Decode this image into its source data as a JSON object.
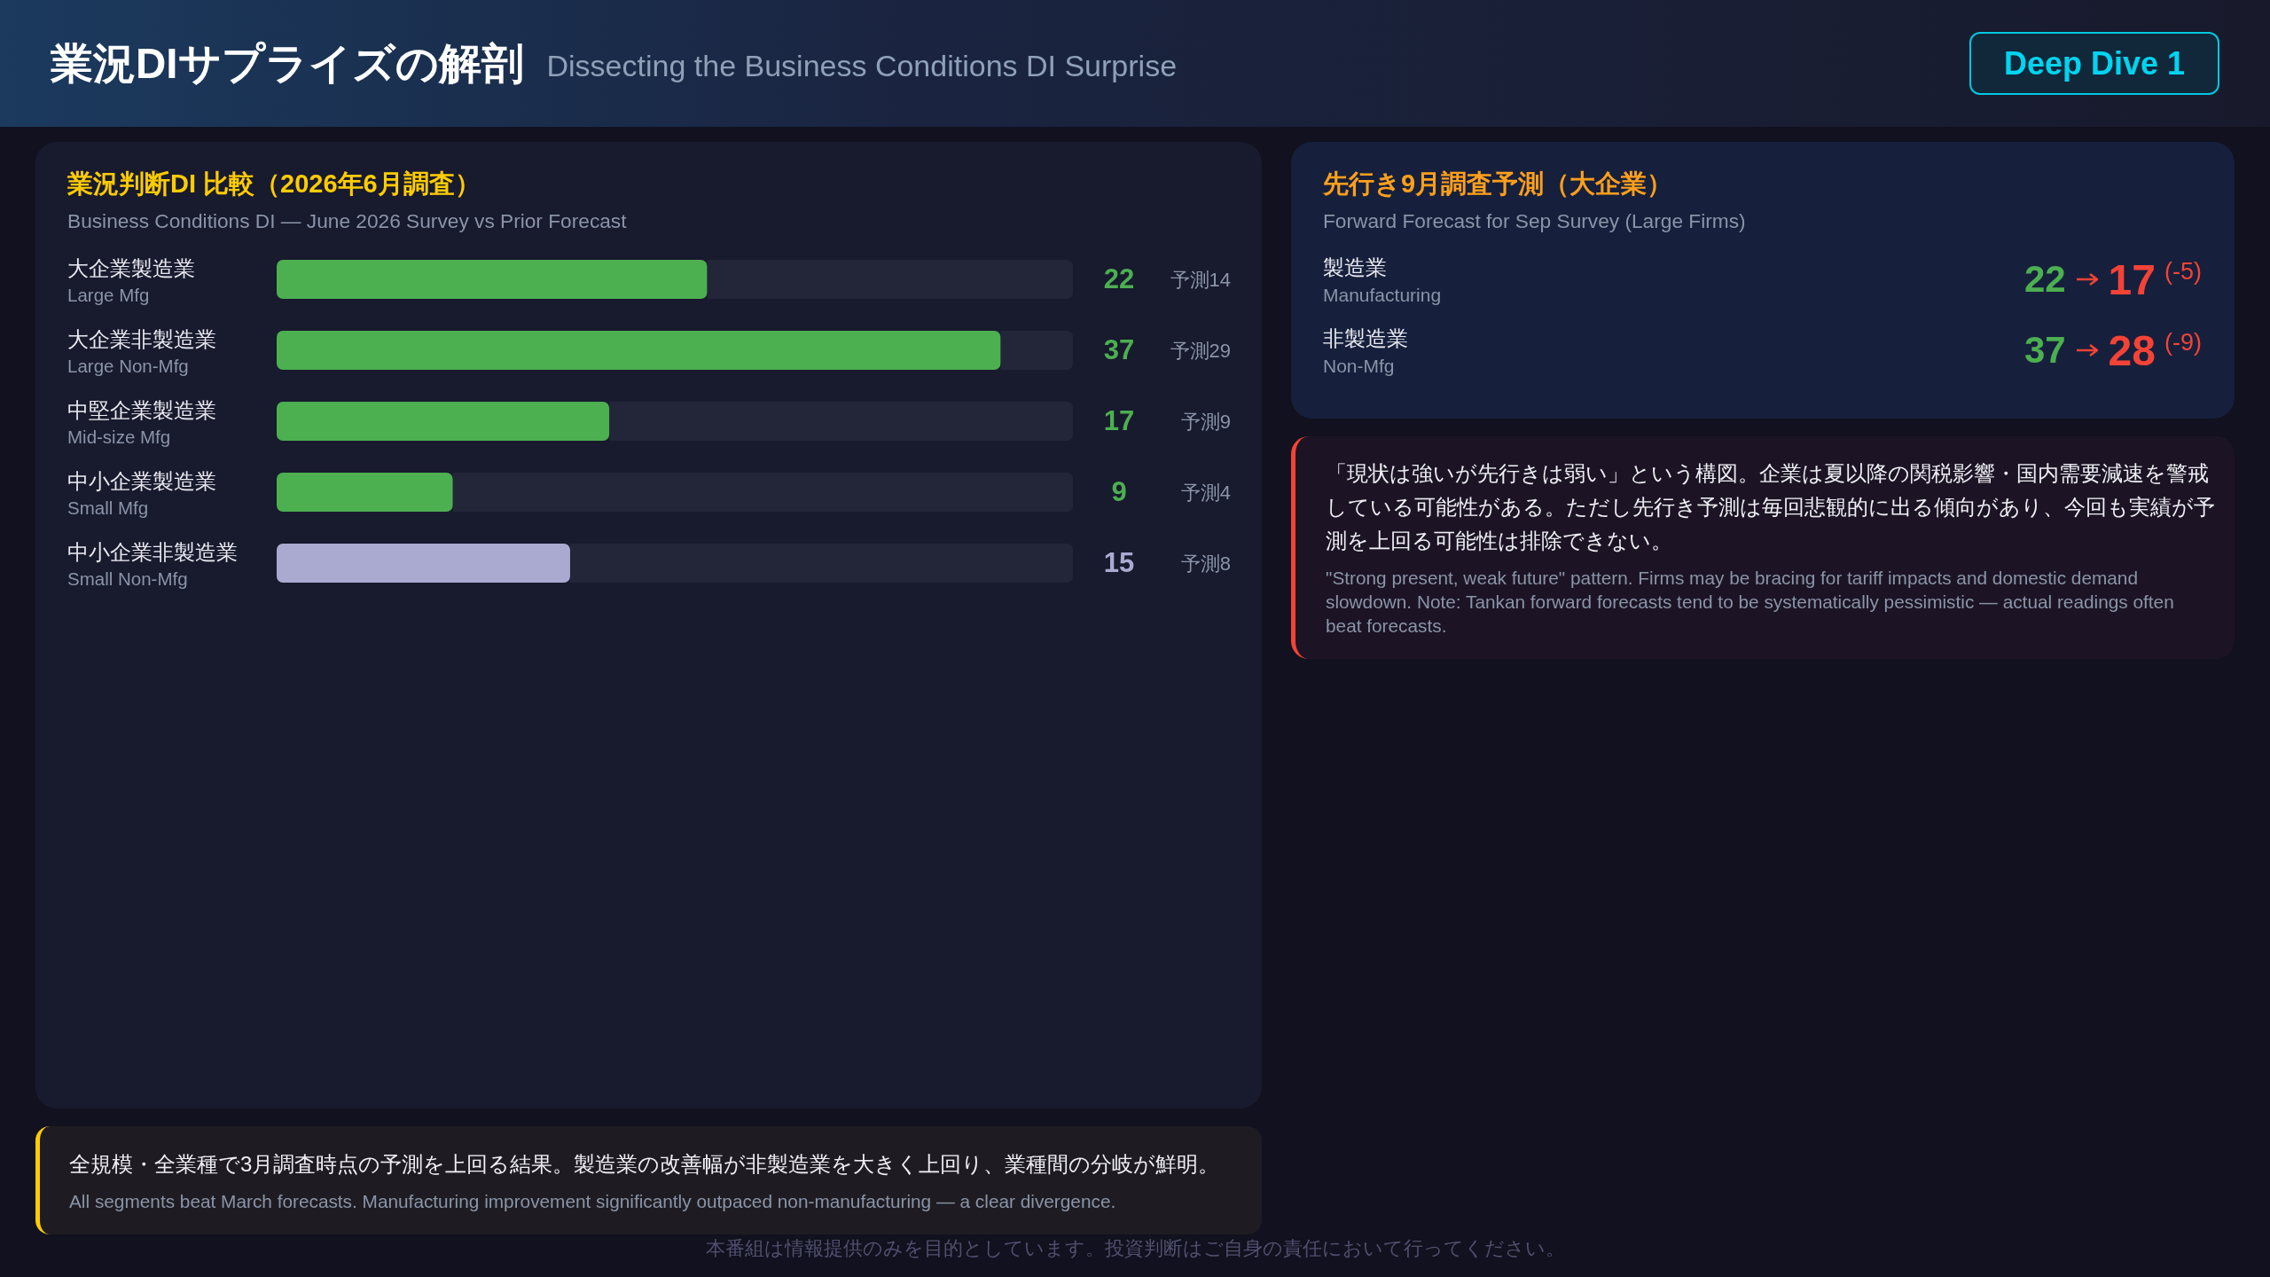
{
  "chart_data": [
    {
      "type": "other",
      "title": "業況DIサプライズの解剖",
      "subtitle": "Dissecting the Business Conditions DI Surprise",
      "annotations": [
        "Deep Dive 1",
        "本番組は情報提供のみを目的としています。投資判断はご自身の責任において行ってください。"
      ]
    },
    {
      "type": "bar",
      "orientation": "horizontal",
      "title": "業況判断DI 比較（2026年6月調査）",
      "subtitle": "Business Conditions DI — June 2026 Survey vs Prior Forecast",
      "categories": [
        "大企業製造業\nLarge Mfg",
        "大企業非製造業\nLarge Non-Mfg",
        "中堅企業製造業\nMid-size Mfg",
        "中小企業製造業\nSmall Mfg",
        "中小企業非製造業\nSmall Non-Mfg"
      ],
      "values": [
        22,
        37,
        17,
        9,
        15
      ],
      "colors": [
        "#4caf50",
        "#4caf50",
        "#4caf50",
        "#4caf50",
        "#aaaad0"
      ],
      "data_labels": true,
      "annotations": [
        "予測14",
        "予測29",
        "予測9",
        "予測4",
        "予測8",
        "全規模・全業種で3月調査時点の予測を上回る結果。製造業の改善幅が非製造業を大きく上回り、業種間の分岐が鮮明。",
        "All segments beat March forecasts. Manufacturing improvement significantly outpaced non-manufacturing — a clear divergence."
      ]
    },
    {
      "type": "other",
      "title": "先行き9月調査予測（大企業）",
      "subtitle": "Forward Forecast for Sep Survey (Large Firms)",
      "categories": [
        "製造業\nManufacturing",
        "非製造業\nNon-Mfg"
      ],
      "series": [
        {
          "values": [
            22,
            37
          ]
        },
        {
          "values": [
            17,
            28
          ]
        },
        {
          "values": [
            -5,
            -9
          ],
          "value_labels": [
            "(-5)",
            "(-9)"
          ]
        }
      ],
      "data_labels": true
    },
    {
      "type": "other",
      "annotations": [
        "「現状は強いが先行きは弱い」という構図。企業は夏以降の関税影響・国内需要減速を警戒している可能性がある。ただし先行き予測は毎回悲観的に出る傾向があり、今回も実績が予測を上回る可能性は排除できない。",
        "\"Strong present, weak future\" pattern. Firms may be bracing for tariff impacts and domestic demand slowdown. Note: Tankan forward forecasts tend to be systematically pessimistic — actual readings often beat forecasts."
      ]
    }
  ]
}
